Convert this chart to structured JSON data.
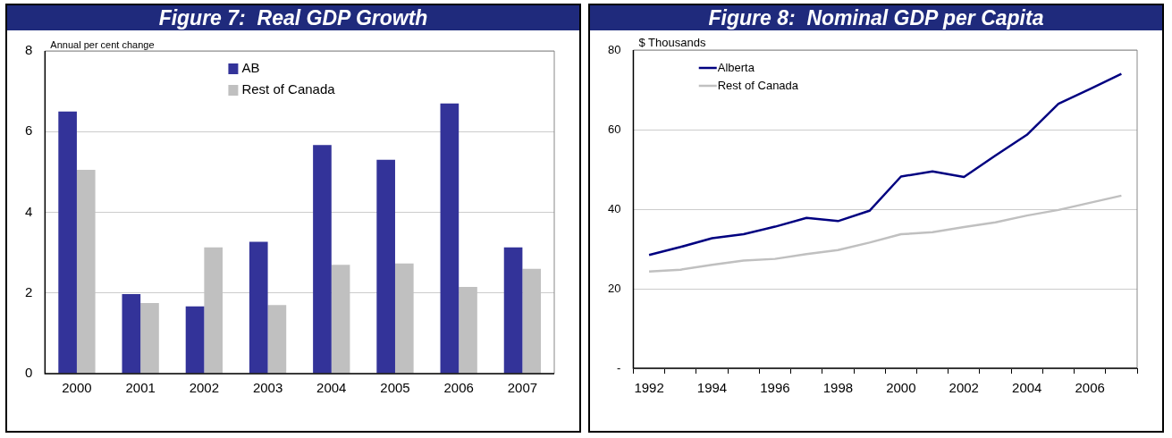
{
  "chart_data": [
    {
      "type": "bar",
      "title": "Figure 7:  Real GDP Growth",
      "ylabel": "Annual per cent change",
      "categories": [
        "2000",
        "2001",
        "2002",
        "2003",
        "2004",
        "2005",
        "2006",
        "2007"
      ],
      "series": [
        {
          "name": "AB",
          "color": "#333399",
          "values": [
            6.5,
            1.97,
            1.67,
            3.27,
            5.67,
            5.3,
            6.7,
            3.13
          ]
        },
        {
          "name": "Rest of Canada",
          "color": "#c0c0c0",
          "values": [
            5.05,
            1.75,
            3.13,
            1.7,
            2.7,
            2.73,
            2.15,
            2.6
          ]
        }
      ],
      "ylim": [
        0,
        8
      ],
      "yticks": [
        0,
        2,
        4,
        6,
        8
      ],
      "grid": "y",
      "legend": "top"
    },
    {
      "type": "line",
      "title": "Figure 8:  Nominal GDP per Capita",
      "ylabel": "$ Thousands",
      "categories": [
        "1992",
        null,
        "1994",
        null,
        "1996",
        null,
        "1998",
        null,
        "2000",
        null,
        "2002",
        null,
        "2004",
        null,
        "2006",
        null
      ],
      "series": [
        {
          "name": "Alberta",
          "color": "#000080",
          "values": [
            28.5,
            30.5,
            32.7,
            33.7,
            35.6,
            37.8,
            37.0,
            39.6,
            48.2,
            49.5,
            48.1,
            53.5,
            58.7,
            66.5,
            70.2,
            74.0
          ]
        },
        {
          "name": "Rest of Canada",
          "color": "#c0c0c0",
          "values": [
            24.3,
            24.8,
            26.0,
            27.1,
            27.5,
            28.7,
            29.7,
            31.6,
            33.7,
            34.2,
            35.5,
            36.7,
            38.4,
            39.8,
            41.6,
            43.4
          ]
        }
      ],
      "ylim": [
        0,
        80
      ],
      "yticks": [
        {
          "value": 0,
          "label": "-"
        },
        20,
        40,
        60,
        80
      ],
      "grid": "y",
      "legend": "top left",
      "marker": "none",
      "line_style": "solid"
    }
  ]
}
